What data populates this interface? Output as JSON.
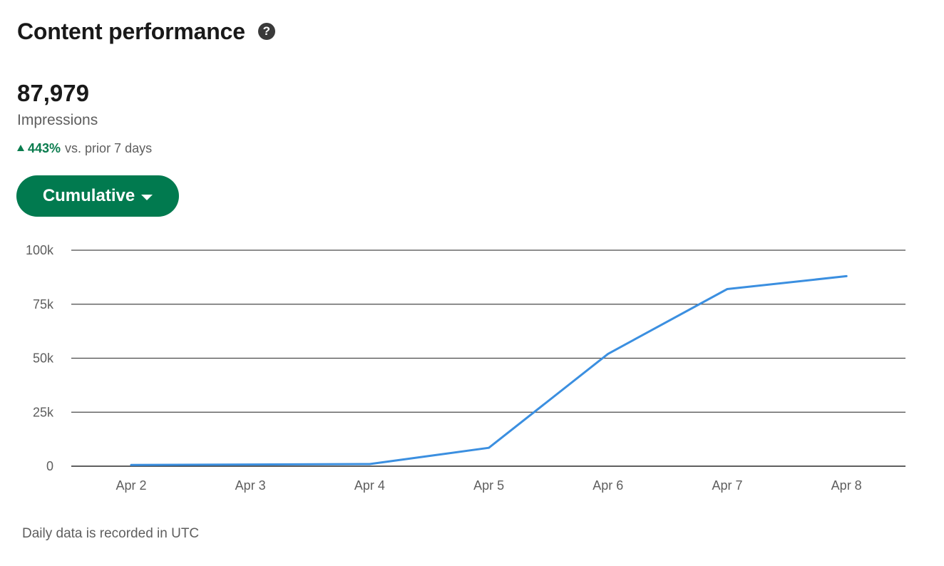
{
  "header": {
    "title": "Content performance",
    "help_icon": "question-circle-icon",
    "help_glyph": "?"
  },
  "metric": {
    "value": "87,979",
    "label": "Impressions",
    "change_pct": "443%",
    "change_text": "vs. prior 7 days",
    "change_direction": "up",
    "change_color": "#0a7c4e"
  },
  "dropdown": {
    "label": "Cumulative",
    "color": "#017a4f"
  },
  "chart_data": {
    "type": "line",
    "categories": [
      "Apr 2",
      "Apr 3",
      "Apr 4",
      "Apr 5",
      "Apr 6",
      "Apr 7",
      "Apr 8"
    ],
    "series": [
      {
        "values": [
          600,
          800,
          1000,
          8500,
          52000,
          82000,
          87979
        ],
        "color": "#3b8fe0"
      }
    ],
    "ylim": [
      0,
      100000
    ],
    "yticks": [
      0,
      25000,
      50000,
      75000,
      100000
    ],
    "ytick_labels": [
      "0",
      "25k",
      "50k",
      "75k",
      "100k"
    ],
    "grid": true,
    "title": "",
    "xlabel": "",
    "ylabel": ""
  },
  "footnote": "Daily data is recorded in UTC"
}
